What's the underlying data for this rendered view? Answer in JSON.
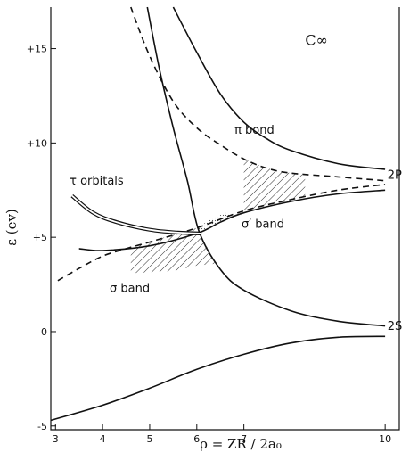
{
  "chart_data": {
    "type": "line",
    "title": "C∞",
    "xlabel": "ρ = ZR / 2a₀",
    "ylabel": "ε (ev)",
    "xlim": [
      2.9,
      10.3
    ],
    "ylim": [
      -5.2,
      17.2
    ],
    "x_ticks": [
      3,
      4,
      5,
      6,
      7,
      10
    ],
    "y_ticks": [
      {
        "value": 15,
        "label": "+15"
      },
      {
        "value": 10,
        "label": "+10"
      },
      {
        "value": 5,
        "label": "+5"
      },
      {
        "value": 0,
        "label": "0"
      },
      {
        "value": -5,
        "label": "-5"
      }
    ],
    "grid": false,
    "legend": "none",
    "series": [
      {
        "style": "solid",
        "points": [
          [
            4.95,
            17.2
          ],
          [
            5.2,
            14
          ],
          [
            5.5,
            10.8
          ],
          [
            5.8,
            8
          ],
          [
            6.05,
            5.3
          ],
          [
            6.5,
            3.3
          ],
          [
            7,
            2.2
          ],
          [
            8,
            1.1
          ],
          [
            9,
            0.55
          ],
          [
            10,
            0.3
          ]
        ]
      },
      {
        "style": "solid",
        "points": [
          [
            5.5,
            17.2
          ],
          [
            6,
            14.8
          ],
          [
            6.5,
            12.6
          ],
          [
            7,
            11.1
          ],
          [
            7.5,
            10.2
          ],
          [
            8,
            9.6
          ],
          [
            9,
            8.9
          ],
          [
            10,
            8.6
          ]
        ]
      },
      {
        "style": "solid",
        "points": [
          [
            3.5,
            4.4
          ],
          [
            4,
            4.3
          ],
          [
            5,
            4.55
          ],
          [
            6,
            5.2
          ],
          [
            6.5,
            5.8
          ],
          [
            7,
            6.3
          ],
          [
            8,
            6.9
          ],
          [
            9,
            7.3
          ],
          [
            10,
            7.5
          ]
        ]
      },
      {
        "style": "solid",
        "points": [
          [
            2.9,
            -4.7
          ],
          [
            4,
            -3.9
          ],
          [
            5,
            -3
          ],
          [
            6,
            -2
          ],
          [
            7,
            -1.2
          ],
          [
            8,
            -0.6
          ],
          [
            9,
            -0.3
          ],
          [
            10,
            -0.25
          ]
        ]
      },
      {
        "style": "dashed",
        "points": [
          [
            4.6,
            17.2
          ],
          [
            5,
            14.6
          ],
          [
            5.5,
            12.2
          ],
          [
            6,
            10.8
          ],
          [
            6.5,
            9.9
          ],
          [
            7,
            9.15
          ],
          [
            7.5,
            8.65
          ],
          [
            8,
            8.4
          ],
          [
            9,
            8.2
          ],
          [
            10,
            8
          ]
        ]
      },
      {
        "style": "dashed",
        "points": [
          [
            3.05,
            2.7
          ],
          [
            3.5,
            3.35
          ],
          [
            4,
            4
          ],
          [
            4.5,
            4.4
          ],
          [
            5,
            4.75
          ],
          [
            6,
            5.5
          ],
          [
            7,
            6.4
          ],
          [
            8,
            7
          ],
          [
            9,
            7.5
          ],
          [
            10,
            7.8
          ]
        ]
      },
      {
        "style": "double",
        "points": [
          [
            3.35,
            7.2
          ],
          [
            3.8,
            6.3
          ],
          [
            4.3,
            5.8
          ],
          [
            5,
            5.4
          ],
          [
            5.6,
            5.25
          ],
          [
            6.1,
            5.2
          ]
        ]
      }
    ],
    "shaded_regions": [
      {
        "name": "π band",
        "bounds": [
          [
            7,
            9.15
          ],
          [
            7.5,
            8.65
          ],
          [
            8,
            8.4
          ],
          [
            8.3,
            8.3
          ],
          [
            8.3,
            7.1
          ],
          [
            8,
            7
          ],
          [
            7.5,
            6.7
          ],
          [
            7,
            6.4
          ]
        ]
      },
      {
        "name": "σ′ band",
        "bounds": [
          [
            6,
            5.5
          ],
          [
            6.3,
            5.95
          ],
          [
            6.6,
            6.3
          ],
          [
            6.8,
            6.2
          ],
          [
            6.6,
            5.95
          ],
          [
            6.3,
            5.55
          ],
          [
            6.05,
            5.3
          ]
        ]
      },
      {
        "name": "σ band",
        "bounds": [
          [
            4.6,
            4.45
          ],
          [
            5,
            4.75
          ],
          [
            5.5,
            5.15
          ],
          [
            6,
            5.5
          ],
          [
            6.05,
            5.3
          ],
          [
            6.4,
            3.6
          ],
          [
            6,
            3.5
          ],
          [
            5.5,
            3.2
          ],
          [
            4.6,
            3.1
          ]
        ]
      }
    ],
    "annotations": [
      {
        "text": "C∞",
        "x": 8.3,
        "y": 15.2
      },
      {
        "text": "π bond",
        "x": 6.8,
        "y": 10.5
      },
      {
        "text": "2P",
        "x": 10.05,
        "y": 8.1
      },
      {
        "text": "τ orbitals",
        "x": 3.3,
        "y": 7.8
      },
      {
        "text": "σ′ band",
        "x": 6.95,
        "y": 5.5
      },
      {
        "text": "σ band",
        "x": 4.15,
        "y": 2.1
      },
      {
        "text": "2S",
        "x": 10.05,
        "y": 0.1
      }
    ]
  }
}
